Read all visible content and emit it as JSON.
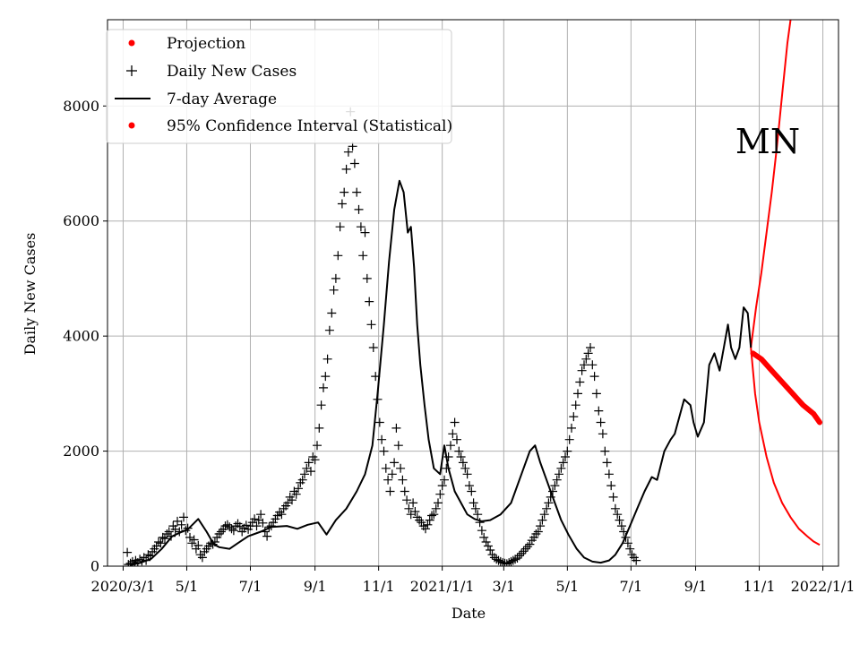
{
  "chart_data": {
    "type": "line",
    "title": "",
    "annotation": "MN",
    "xlabel": "Date",
    "ylabel": "Daily New Cases",
    "x_unit": "days since 2020-02-22",
    "xlim": [
      -7,
      694
    ],
    "ylim": [
      0,
      9500
    ],
    "grid": true,
    "legend_position": "top-left",
    "x_ticks": [
      {
        "day": 8,
        "label": "2020/3/1"
      },
      {
        "day": 69,
        "label": "5/1"
      },
      {
        "day": 130,
        "label": "7/1"
      },
      {
        "day": 192,
        "label": "9/1"
      },
      {
        "day": 253,
        "label": "11/1"
      },
      {
        "day": 314,
        "label": "2021/1/1"
      },
      {
        "day": 373,
        "label": "3/1"
      },
      {
        "day": 434,
        "label": "5/1"
      },
      {
        "day": 495,
        "label": "7/1"
      },
      {
        "day": 557,
        "label": "9/1"
      },
      {
        "day": 618,
        "label": "11/1"
      },
      {
        "day": 679,
        "label": "2022/1/1"
      }
    ],
    "y_ticks": [
      {
        "value": 0,
        "label": "0"
      },
      {
        "value": 2000,
        "label": "2000"
      },
      {
        "value": 4000,
        "label": "4000"
      },
      {
        "value": 6000,
        "label": "6000"
      },
      {
        "value": 8000,
        "label": "8000"
      }
    ],
    "legend": [
      {
        "label": "Projection",
        "marker": "dot",
        "color": "#ff0000"
      },
      {
        "label": "Daily New Cases",
        "marker": "plus",
        "color": "#000000"
      },
      {
        "label": "7-day Average",
        "marker": "line",
        "color": "#000000"
      },
      {
        "label": "95% Confidence Interval (Statistical)",
        "marker": "dot",
        "color": "#ff0000"
      }
    ],
    "series": [
      {
        "name": "7-day Average",
        "color": "#000000",
        "points": [
          [
            15,
            20
          ],
          [
            25,
            60
          ],
          [
            35,
            130
          ],
          [
            45,
            300
          ],
          [
            55,
            520
          ],
          [
            62,
            580
          ],
          [
            70,
            640
          ],
          [
            80,
            820
          ],
          [
            88,
            600
          ],
          [
            95,
            380
          ],
          [
            100,
            330
          ],
          [
            110,
            300
          ],
          [
            118,
            400
          ],
          [
            128,
            520
          ],
          [
            140,
            600
          ],
          [
            150,
            680
          ],
          [
            165,
            700
          ],
          [
            175,
            650
          ],
          [
            185,
            720
          ],
          [
            195,
            760
          ],
          [
            203,
            550
          ],
          [
            212,
            800
          ],
          [
            222,
            1000
          ],
          [
            232,
            1300
          ],
          [
            240,
            1600
          ],
          [
            247,
            2100
          ],
          [
            252,
            3000
          ],
          [
            258,
            4200
          ],
          [
            263,
            5300
          ],
          [
            268,
            6200
          ],
          [
            273,
            6700
          ],
          [
            277,
            6500
          ],
          [
            281,
            5800
          ],
          [
            284,
            5900
          ],
          [
            287,
            5200
          ],
          [
            290,
            4200
          ],
          [
            293,
            3500
          ],
          [
            297,
            2800
          ],
          [
            301,
            2200
          ],
          [
            306,
            1700
          ],
          [
            312,
            1600
          ],
          [
            316,
            2100
          ],
          [
            320,
            1700
          ],
          [
            326,
            1300
          ],
          [
            332,
            1100
          ],
          [
            338,
            900
          ],
          [
            345,
            820
          ],
          [
            352,
            780
          ],
          [
            360,
            800
          ],
          [
            370,
            900
          ],
          [
            380,
            1100
          ],
          [
            390,
            1600
          ],
          [
            398,
            2000
          ],
          [
            403,
            2100
          ],
          [
            408,
            1800
          ],
          [
            414,
            1500
          ],
          [
            420,
            1200
          ],
          [
            428,
            800
          ],
          [
            435,
            550
          ],
          [
            443,
            300
          ],
          [
            450,
            150
          ],
          [
            458,
            80
          ],
          [
            466,
            60
          ],
          [
            474,
            100
          ],
          [
            480,
            200
          ],
          [
            487,
            400
          ],
          [
            494,
            700
          ],
          [
            501,
            1000
          ],
          [
            508,
            1300
          ],
          [
            515,
            1550
          ],
          [
            520,
            1500
          ],
          [
            527,
            2000
          ],
          [
            533,
            2200
          ],
          [
            537,
            2300
          ],
          [
            543,
            2700
          ],
          [
            546,
            2900
          ],
          [
            552,
            2800
          ],
          [
            555,
            2500
          ],
          [
            559,
            2250
          ],
          [
            565,
            2500
          ],
          [
            570,
            3500
          ],
          [
            575,
            3700
          ],
          [
            580,
            3400
          ],
          [
            584,
            3800
          ],
          [
            588,
            4200
          ],
          [
            591,
            3800
          ],
          [
            595,
            3600
          ],
          [
            599,
            3800
          ],
          [
            603,
            4500
          ],
          [
            607,
            4400
          ],
          [
            610,
            3800
          ]
        ]
      },
      {
        "name": "Projection",
        "color": "#ff0000",
        "points": [
          [
            612,
            3700
          ],
          [
            620,
            3600
          ],
          [
            630,
            3400
          ],
          [
            640,
            3200
          ],
          [
            650,
            3000
          ],
          [
            660,
            2800
          ],
          [
            670,
            2650
          ],
          [
            676,
            2500
          ]
        ]
      },
      {
        "name": "95% Confidence Interval (Statistical)",
        "color": "#ff0000",
        "upper": [
          [
            610,
            3800
          ],
          [
            615,
            4500
          ],
          [
            620,
            5100
          ],
          [
            625,
            5800
          ],
          [
            630,
            6500
          ],
          [
            635,
            7300
          ],
          [
            640,
            8200
          ],
          [
            645,
            9100
          ],
          [
            648,
            9500
          ]
        ],
        "lower": [
          [
            610,
            3800
          ],
          [
            614,
            3000
          ],
          [
            618,
            2500
          ],
          [
            625,
            1900
          ],
          [
            632,
            1450
          ],
          [
            640,
            1100
          ],
          [
            648,
            850
          ],
          [
            656,
            650
          ],
          [
            664,
            520
          ],
          [
            670,
            430
          ],
          [
            676,
            370
          ]
        ]
      }
    ],
    "scatter_points": [
      [
        12,
        240
      ],
      [
        13,
        30
      ],
      [
        15,
        50
      ],
      [
        17,
        80
      ],
      [
        19,
        40
      ],
      [
        20,
        100
      ],
      [
        22,
        60
      ],
      [
        24,
        120
      ],
      [
        26,
        90
      ],
      [
        28,
        150
      ],
      [
        30,
        100
      ],
      [
        32,
        200
      ],
      [
        34,
        180
      ],
      [
        36,
        250
      ],
      [
        38,
        300
      ],
      [
        40,
        350
      ],
      [
        42,
        420
      ],
      [
        44,
        400
      ],
      [
        46,
        500
      ],
      [
        48,
        480
      ],
      [
        50,
        560
      ],
      [
        52,
        600
      ],
      [
        54,
        520
      ],
      [
        56,
        700
      ],
      [
        58,
        640
      ],
      [
        60,
        780
      ],
      [
        62,
        600
      ],
      [
        64,
        720
      ],
      [
        66,
        850
      ],
      [
        68,
        620
      ],
      [
        70,
        660
      ],
      [
        72,
        500
      ],
      [
        74,
        400
      ],
      [
        76,
        460
      ],
      [
        78,
        300
      ],
      [
        80,
        360
      ],
      [
        82,
        200
      ],
      [
        84,
        150
      ],
      [
        86,
        250
      ],
      [
        88,
        300
      ],
      [
        90,
        350
      ],
      [
        92,
        400
      ],
      [
        94,
        380
      ],
      [
        96,
        420
      ],
      [
        98,
        500
      ],
      [
        100,
        560
      ],
      [
        102,
        600
      ],
      [
        104,
        640
      ],
      [
        106,
        700
      ],
      [
        108,
        720
      ],
      [
        110,
        680
      ],
      [
        112,
        650
      ],
      [
        114,
        620
      ],
      [
        116,
        700
      ],
      [
        118,
        740
      ],
      [
        120,
        690
      ],
      [
        122,
        600
      ],
      [
        124,
        660
      ],
      [
        126,
        710
      ],
      [
        128,
        640
      ],
      [
        130,
        700
      ],
      [
        132,
        760
      ],
      [
        134,
        820
      ],
      [
        136,
        700
      ],
      [
        138,
        800
      ],
      [
        140,
        900
      ],
      [
        142,
        750
      ],
      [
        144,
        600
      ],
      [
        146,
        520
      ],
      [
        148,
        680
      ],
      [
        150,
        700
      ],
      [
        152,
        760
      ],
      [
        154,
        820
      ],
      [
        156,
        880
      ],
      [
        158,
        940
      ],
      [
        160,
        900
      ],
      [
        162,
        1000
      ],
      [
        164,
        1050
      ],
      [
        166,
        1100
      ],
      [
        168,
        1200
      ],
      [
        170,
        1150
      ],
      [
        172,
        1300
      ],
      [
        174,
        1250
      ],
      [
        176,
        1350
      ],
      [
        178,
        1450
      ],
      [
        180,
        1500
      ],
      [
        182,
        1600
      ],
      [
        184,
        1700
      ],
      [
        186,
        1800
      ],
      [
        188,
        1650
      ],
      [
        190,
        1900
      ],
      [
        192,
        1850
      ],
      [
        194,
        2100
      ],
      [
        196,
        2400
      ],
      [
        198,
        2800
      ],
      [
        200,
        3100
      ],
      [
        202,
        3300
      ],
      [
        204,
        3600
      ],
      [
        206,
        4100
      ],
      [
        208,
        4400
      ],
      [
        210,
        4800
      ],
      [
        212,
        5000
      ],
      [
        214,
        5400
      ],
      [
        216,
        5900
      ],
      [
        218,
        6300
      ],
      [
        220,
        6500
      ],
      [
        222,
        6900
      ],
      [
        224,
        7200
      ],
      [
        226,
        7900
      ],
      [
        228,
        7300
      ],
      [
        230,
        7000
      ],
      [
        232,
        6500
      ],
      [
        234,
        6200
      ],
      [
        236,
        5900
      ],
      [
        238,
        5400
      ],
      [
        240,
        5800
      ],
      [
        242,
        5000
      ],
      [
        244,
        4600
      ],
      [
        246,
        4200
      ],
      [
        248,
        3800
      ],
      [
        250,
        3300
      ],
      [
        252,
        2900
      ],
      [
        254,
        2500
      ],
      [
        256,
        2200
      ],
      [
        258,
        2000
      ],
      [
        260,
        1700
      ],
      [
        262,
        1500
      ],
      [
        264,
        1300
      ],
      [
        266,
        1600
      ],
      [
        268,
        1800
      ],
      [
        270,
        2400
      ],
      [
        272,
        2100
      ],
      [
        274,
        1700
      ],
      [
        276,
        1500
      ],
      [
        278,
        1300
      ],
      [
        280,
        1150
      ],
      [
        282,
        1000
      ],
      [
        284,
        900
      ],
      [
        286,
        1100
      ],
      [
        288,
        950
      ],
      [
        290,
        850
      ],
      [
        292,
        800
      ],
      [
        294,
        760
      ],
      [
        296,
        700
      ],
      [
        298,
        650
      ],
      [
        300,
        720
      ],
      [
        302,
        800
      ],
      [
        304,
        880
      ],
      [
        306,
        900
      ],
      [
        308,
        1000
      ],
      [
        310,
        1100
      ],
      [
        312,
        1250
      ],
      [
        314,
        1400
      ],
      [
        316,
        1500
      ],
      [
        318,
        1700
      ],
      [
        320,
        1900
      ],
      [
        322,
        2100
      ],
      [
        324,
        2300
      ],
      [
        326,
        2500
      ],
      [
        328,
        2200
      ],
      [
        330,
        2000
      ],
      [
        332,
        1900
      ],
      [
        334,
        1800
      ],
      [
        336,
        1700
      ],
      [
        338,
        1600
      ],
      [
        340,
        1400
      ],
      [
        342,
        1300
      ],
      [
        344,
        1100
      ],
      [
        346,
        1000
      ],
      [
        348,
        900
      ],
      [
        350,
        760
      ],
      [
        352,
        620
      ],
      [
        354,
        500
      ],
      [
        356,
        420
      ],
      [
        358,
        350
      ],
      [
        360,
        280
      ],
      [
        362,
        200
      ],
      [
        364,
        150
      ],
      [
        366,
        120
      ],
      [
        368,
        100
      ],
      [
        370,
        80
      ],
      [
        372,
        60
      ],
      [
        374,
        50
      ],
      [
        376,
        40
      ],
      [
        378,
        60
      ],
      [
        380,
        80
      ],
      [
        382,
        100
      ],
      [
        384,
        120
      ],
      [
        386,
        140
      ],
      [
        388,
        180
      ],
      [
        390,
        220
      ],
      [
        392,
        260
      ],
      [
        394,
        300
      ],
      [
        396,
        340
      ],
      [
        398,
        380
      ],
      [
        400,
        450
      ],
      [
        402,
        500
      ],
      [
        404,
        560
      ],
      [
        406,
        600
      ],
      [
        408,
        700
      ],
      [
        410,
        800
      ],
      [
        412,
        900
      ],
      [
        414,
        1000
      ],
      [
        416,
        1100
      ],
      [
        418,
        1200
      ],
      [
        420,
        1300
      ],
      [
        422,
        1400
      ],
      [
        424,
        1500
      ],
      [
        426,
        1600
      ],
      [
        428,
        1700
      ],
      [
        430,
        1800
      ],
      [
        432,
        1900
      ],
      [
        434,
        2000
      ],
      [
        436,
        2200
      ],
      [
        438,
        2400
      ],
      [
        440,
        2600
      ],
      [
        442,
        2800
      ],
      [
        444,
        3000
      ],
      [
        446,
        3200
      ],
      [
        448,
        3400
      ],
      [
        450,
        3500
      ],
      [
        452,
        3600
      ],
      [
        454,
        3700
      ],
      [
        456,
        3800
      ],
      [
        458,
        3500
      ],
      [
        460,
        3300
      ],
      [
        462,
        3000
      ],
      [
        464,
        2700
      ],
      [
        466,
        2500
      ],
      [
        468,
        2300
      ],
      [
        470,
        2000
      ],
      [
        472,
        1800
      ],
      [
        474,
        1600
      ],
      [
        476,
        1400
      ],
      [
        478,
        1200
      ],
      [
        480,
        1000
      ],
      [
        482,
        900
      ],
      [
        484,
        800
      ],
      [
        486,
        700
      ],
      [
        488,
        600
      ],
      [
        490,
        500
      ],
      [
        492,
        400
      ],
      [
        494,
        300
      ],
      [
        496,
        200
      ],
      [
        498,
        150
      ],
      [
        500,
        100
      ]
    ]
  }
}
